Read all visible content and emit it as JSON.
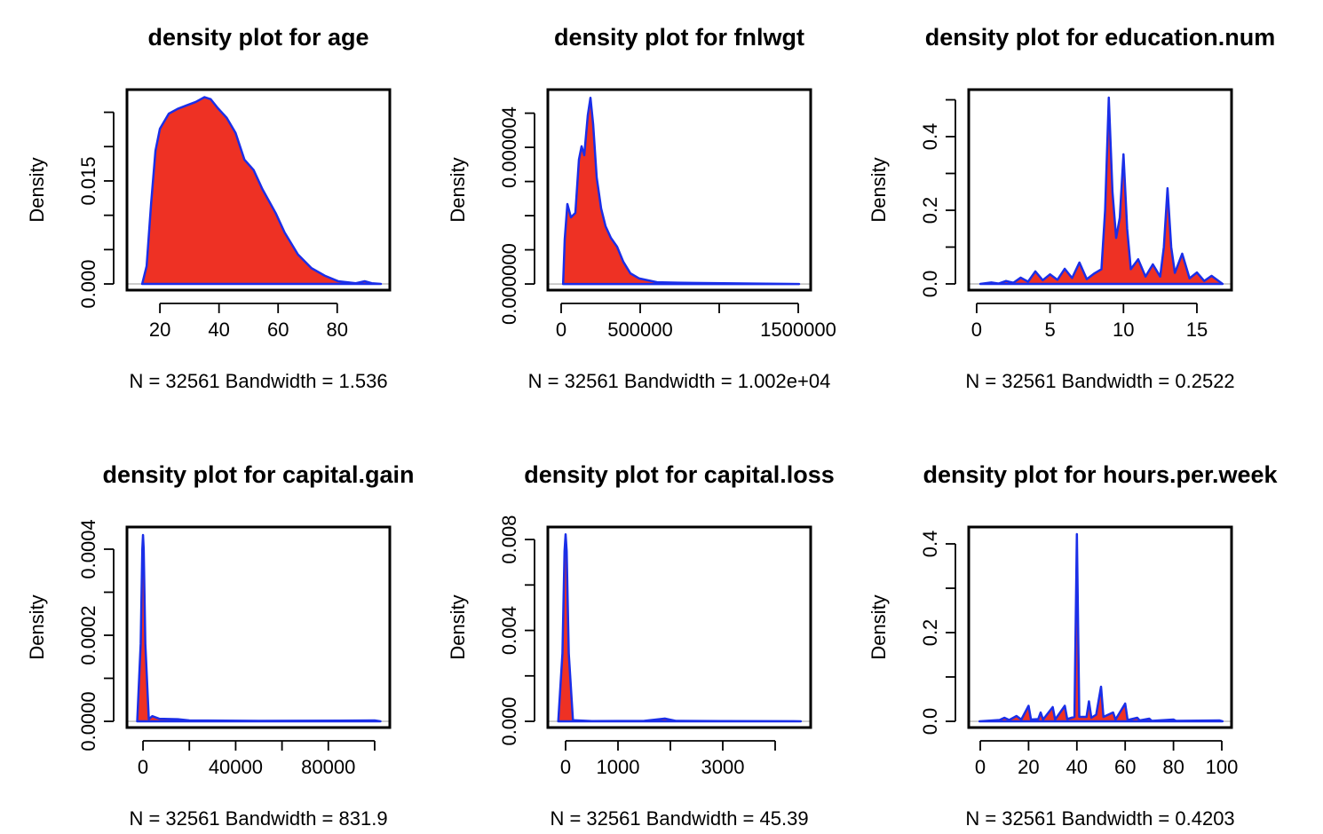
{
  "chart_data": [
    {
      "type": "area",
      "title": "density plot for age",
      "xlabel": "N = 32561   Bandwidth = 1.536",
      "ylabel": "Density",
      "color": "#ee3124",
      "line_color": "#1a2ee8",
      "x": [
        14.0,
        15.5,
        17.0,
        18.5,
        20,
        23,
        26,
        29,
        32.1,
        35.1,
        37.2,
        39.6,
        42.6,
        45.6,
        48.6,
        51.7,
        54.7,
        59.2,
        62.2,
        66.7,
        71.3,
        75.8,
        80.3,
        86.3,
        89.3,
        91.7,
        94.8
      ],
      "values": [
        0,
        0.0026,
        0.0116,
        0.0194,
        0.0226,
        0.0248,
        0.0255,
        0.026,
        0.0265,
        0.0272,
        0.0269,
        0.0256,
        0.0242,
        0.022,
        0.0181,
        0.0166,
        0.0138,
        0.0103,
        0.0075,
        0.0043,
        0.0023,
        0.0012,
        0.0004,
        0.0001,
        0.0004,
        0.0001,
        0
      ],
      "xlim": [
        8.85,
        97.8
      ],
      "ylim": [
        -0.0009,
        0.0283
      ],
      "xticks": [
        20,
        40,
        60,
        80
      ],
      "xticks_minor": [],
      "yticks": [
        {
          "value": 0,
          "label": "0.000"
        },
        {
          "value": 0.015,
          "label": "0.015"
        }
      ],
      "yticks_minor": [
        0.005,
        0.01,
        0.02,
        0.025
      ]
    },
    {
      "type": "area",
      "title": "density plot for fnlwgt",
      "xlabel": "N = 32561   Bandwidth = 1.002e+04",
      "ylabel": "Density",
      "color": "#ee3124",
      "line_color": "#1a2ee8",
      "x": [
        12285,
        22472,
        39326,
        61798,
        89888,
        112360,
        129214,
        146068,
        168540,
        185394,
        202248,
        224720,
        252810,
        280900,
        314608,
        353934,
        393260,
        438204,
        494384,
        606744,
        831464,
        1224724,
        1505624
      ],
      "values": [
        0,
        1.3e-06,
        2.34e-06,
        1.95e-06,
        2.08e-06,
        3.64e-06,
        4.03e-06,
        3.77e-06,
        4.94e-06,
        5.45e-06,
        4.68e-06,
        3.12e-06,
        2.21e-06,
        1.69e-06,
        1.35e-06,
        1.09e-06,
        6.5e-07,
        3.1e-07,
        1.6e-07,
        5e-08,
        3e-08,
        1e-08,
        0
      ],
      "xlim": [
        -84270,
        1578600
      ],
      "ylim": [
        -1.8e-07,
        5.69e-06
      ],
      "xticks": [
        0,
        500000,
        1500000
      ],
      "xticks_minor": [
        1000000
      ],
      "yticks": [
        {
          "value": 0,
          "label": "0.000000"
        },
        {
          "value": 4e-06,
          "label": "0.000004"
        }
      ],
      "yticks_minor": [
        1e-06,
        2e-06,
        3e-06,
        5e-06
      ]
    },
    {
      "type": "area",
      "title": "density plot for education.num",
      "xlabel": "N = 32561   Bandwidth = 0.2522",
      "ylabel": "Density",
      "color": "#ee3124",
      "line_color": "#1a2ee8",
      "x": [
        0.25,
        1,
        1.5,
        2,
        2.5,
        3,
        3.5,
        4,
        4.5,
        5,
        5.5,
        6,
        6.5,
        7,
        7.5,
        8,
        8.5,
        8.75,
        9,
        9.25,
        9.5,
        9.75,
        10,
        10.25,
        10.5,
        11,
        11.5,
        12,
        12.5,
        12.75,
        13,
        13.25,
        13.5,
        14,
        14.5,
        15,
        15.5,
        16,
        16.75
      ],
      "values": [
        0,
        0.004,
        0.001,
        0.008,
        0.003,
        0.017,
        0.006,
        0.034,
        0.01,
        0.026,
        0.011,
        0.041,
        0.016,
        0.058,
        0.013,
        0.028,
        0.04,
        0.2,
        0.506,
        0.25,
        0.125,
        0.18,
        0.352,
        0.15,
        0.04,
        0.067,
        0.02,
        0.053,
        0.02,
        0.1,
        0.26,
        0.1,
        0.03,
        0.082,
        0.015,
        0.031,
        0.008,
        0.022,
        0
      ],
      "xlim": [
        -0.54,
        17.36
      ],
      "ylim": [
        -0.0169,
        0.5277
      ],
      "xticks": [
        0,
        5,
        10,
        15
      ],
      "xticks_minor": [],
      "yticks": [
        {
          "value": 0,
          "label": "0.0"
        },
        {
          "value": 0.2,
          "label": "0.2"
        },
        {
          "value": 0.4,
          "label": "0.4"
        }
      ],
      "yticks_minor": [
        0.1,
        0.3,
        0.5
      ]
    },
    {
      "type": "area",
      "title": "density plot for capital.gain",
      "xlabel": "N = 32561   Bandwidth = 831.9",
      "ylabel": "Density",
      "color": "#ee3124",
      "line_color": "#1a2ee8",
      "x": [
        -2500,
        -1000,
        -300,
        0,
        300,
        1000,
        2500,
        4000,
        7000,
        15000,
        20000,
        50000,
        99999,
        102500
      ],
      "values": [
        0,
        0.00018,
        0.0004,
        0.000433,
        0.0004,
        0.00018,
        5e-06,
        1.2e-05,
        6e-06,
        5e-06,
        2e-06,
        1e-06,
        2e-06,
        0
      ],
      "xlim": [
        -6923,
        106538
      ],
      "ylim": [
        -1.44e-05,
        0.0004515
      ],
      "xticks": [
        0,
        40000,
        80000
      ],
      "xticks_minor": [
        20000,
        60000,
        100000
      ],
      "yticks": [
        {
          "value": 0,
          "label": "0.0000"
        },
        {
          "value": 0.0002,
          "label": "0.0002"
        },
        {
          "value": 0.0004,
          "label": "0.0004"
        }
      ],
      "yticks_minor": [
        0.0001,
        0.0003
      ]
    },
    {
      "type": "area",
      "title": "density plot for capital.loss",
      "xlabel": "N = 32561   Bandwidth = 45.39",
      "ylabel": "Density",
      "color": "#ee3124",
      "line_color": "#1a2ee8",
      "x": [
        -140,
        -60,
        -20,
        0,
        20,
        60,
        140,
        500,
        1500,
        1900,
        2100,
        3000,
        4356,
        4490
      ],
      "values": [
        0,
        0.003,
        0.0075,
        0.00823,
        0.0075,
        0.003,
        5e-05,
        1e-05,
        2e-05,
        0.00012,
        2e-05,
        1e-05,
        5e-06,
        0
      ],
      "xlim": [
        -339,
        4678
      ],
      "ylim": [
        -0.000273,
        0.00855
      ],
      "xticks": [
        0,
        1000,
        3000
      ],
      "xticks_minor": [
        2000,
        4000
      ],
      "yticks": [
        {
          "value": 0,
          "label": "0.000"
        },
        {
          "value": 0.004,
          "label": "0.004"
        },
        {
          "value": 0.008,
          "label": "0.008"
        }
      ],
      "yticks_minor": [
        0.002,
        0.006
      ]
    },
    {
      "type": "area",
      "title": "density plot for hours.per.week",
      "xlabel": "N = 32561   Bandwidth = 0.4203",
      "ylabel": "Density",
      "color": "#ee3124",
      "line_color": "#1a2ee8",
      "x": [
        -0.3,
        8,
        10,
        12,
        15,
        17,
        20,
        21,
        24,
        25,
        26,
        30,
        31,
        35,
        36,
        39,
        40,
        41,
        44,
        45,
        46,
        48,
        50,
        51,
        55,
        56,
        60,
        61,
        65,
        66,
        70,
        71,
        80,
        81,
        99,
        100.3
      ],
      "values": [
        0,
        0.003,
        0.008,
        0.003,
        0.012,
        0.004,
        0.035,
        0.004,
        0.005,
        0.02,
        0.004,
        0.032,
        0.004,
        0.035,
        0.005,
        0.01,
        0.422,
        0.01,
        0.01,
        0.045,
        0.008,
        0.015,
        0.078,
        0.01,
        0.02,
        0.004,
        0.04,
        0.003,
        0.008,
        0.002,
        0.006,
        0.001,
        0.004,
        0.001,
        0.002,
        0
      ],
      "xlim": [
        -4.78,
        104.04
      ],
      "ylim": [
        -0.014,
        0.438
      ],
      "xticks": [
        0,
        20,
        40,
        60,
        80,
        100
      ],
      "xticks_minor": [],
      "yticks": [
        {
          "value": 0,
          "label": "0.0"
        },
        {
          "value": 0.2,
          "label": "0.2"
        },
        {
          "value": 0.4,
          "label": "0.4"
        }
      ],
      "yticks_minor": [
        0.1,
        0.3
      ]
    }
  ]
}
